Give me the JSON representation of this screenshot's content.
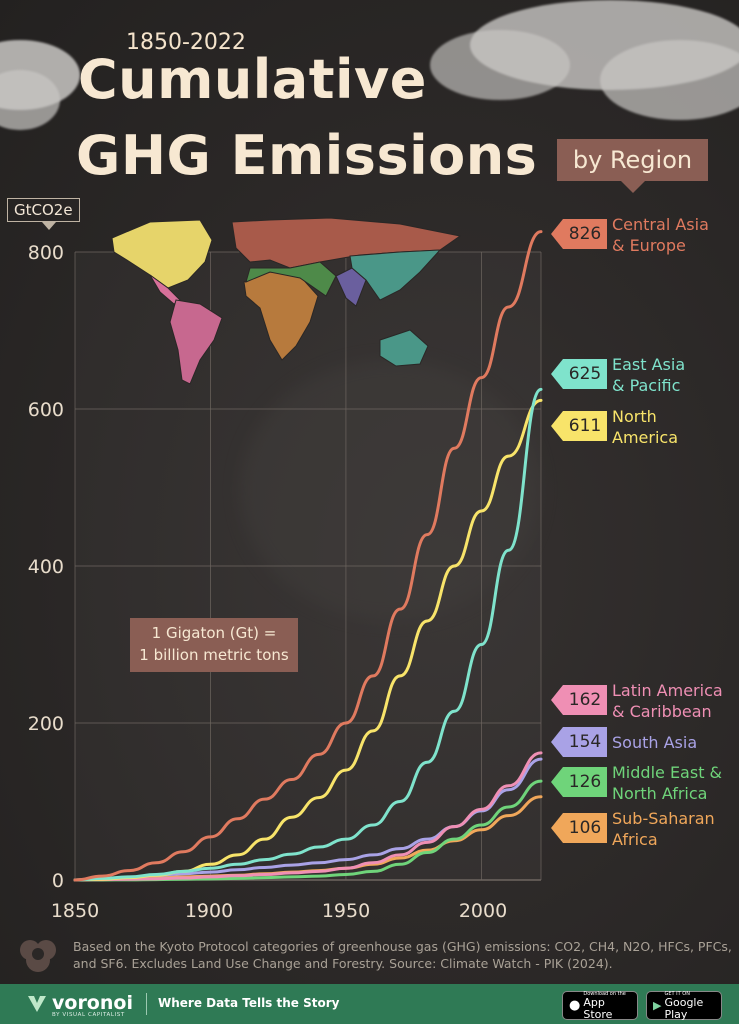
{
  "header": {
    "years": "1850-2022",
    "title_line1": "Cumulative",
    "title_line2": "GHG Emissions",
    "subtitle": "by Region",
    "unit": "GtCO2e"
  },
  "note": {
    "line1": "1 Gigaton (Gt) =",
    "line2": "1 billion metric tons"
  },
  "chart_data": {
    "type": "line",
    "title": "Cumulative GHG Emissions by Region, 1850-2022",
    "ylabel": "GtCO2e",
    "xlim": [
      1850,
      2022
    ],
    "ylim": [
      0,
      800
    ],
    "x_ticks": [
      "1850",
      "1900",
      "1950",
      "2000"
    ],
    "y_ticks": [
      "0",
      "200",
      "400",
      "600",
      "800"
    ],
    "grid": true,
    "x": [
      1850,
      1860,
      1870,
      1880,
      1890,
      1900,
      1910,
      1920,
      1930,
      1940,
      1950,
      1960,
      1970,
      1980,
      1990,
      2000,
      2010,
      2022
    ],
    "series": [
      {
        "name_line1": "Central Asia",
        "name_line2": "& Europe",
        "final": "826",
        "color": "#e07a5f",
        "values": [
          0,
          5,
          12,
          22,
          36,
          55,
          78,
          103,
          128,
          160,
          200,
          260,
          345,
          440,
          550,
          640,
          730,
          826
        ]
      },
      {
        "name_line1": "East Asia",
        "name_line2": "& Pacific",
        "final": "625",
        "color": "#7fe3cc",
        "values": [
          0,
          2,
          4,
          7,
          11,
          15,
          20,
          26,
          33,
          42,
          52,
          70,
          100,
          150,
          215,
          300,
          420,
          625
        ]
      },
      {
        "name_line1": "North",
        "name_line2": "America",
        "final": "611",
        "color": "#f8e46a",
        "values": [
          0,
          1,
          3,
          6,
          11,
          20,
          32,
          52,
          80,
          105,
          140,
          190,
          260,
          330,
          400,
          470,
          540,
          611
        ]
      },
      {
        "name_line1": "Latin America",
        "name_line2": "& Caribbean",
        "final": "162",
        "color": "#ef8fb4",
        "values": [
          0,
          0.5,
          1,
          1.5,
          2.5,
          4,
          5.5,
          7,
          9,
          11,
          15,
          22,
          32,
          48,
          68,
          90,
          120,
          162
        ]
      },
      {
        "name_line1": "South Asia",
        "name_line2": "",
        "final": "154",
        "color": "#a9a2e6",
        "values": [
          0,
          1,
          3,
          6,
          8,
          10,
          13,
          16,
          19,
          22,
          26,
          32,
          40,
          52,
          68,
          88,
          115,
          154
        ]
      },
      {
        "name_line1": "Middle East &",
        "name_line2": "North Africa",
        "final": "126",
        "color": "#6fd47a",
        "values": [
          0,
          0,
          0.2,
          0.5,
          1,
          1.5,
          2,
          3,
          4,
          5,
          7,
          11,
          20,
          35,
          52,
          70,
          93,
          126
        ]
      },
      {
        "name_line1": "Sub-Saharan",
        "name_line2": "Africa",
        "final": "106",
        "color": "#f0a75a",
        "values": [
          0,
          1,
          2,
          3,
          4,
          5,
          6,
          8,
          10,
          12,
          15,
          20,
          28,
          38,
          50,
          64,
          82,
          106
        ]
      }
    ]
  },
  "footnote": "Based on the Kyoto Protocol categories of greenhouse gas (GHG) emissions: CO2, CH4, N2O, HFCs, PFCs, and SF6. Excludes Land Use Change and Forestry. Source: Climate Watch - PIK (2024).",
  "footer": {
    "brand": "voronoi",
    "brand_sub": "BY VISUAL CAPITALIST",
    "tagline": "Where Data Tells the Story",
    "appstore_small": "Download on the",
    "appstore_big": "App Store",
    "googleplay_small": "GET IT ON",
    "googleplay_big": "Google Play",
    "bg_color": "#2f7a55"
  }
}
